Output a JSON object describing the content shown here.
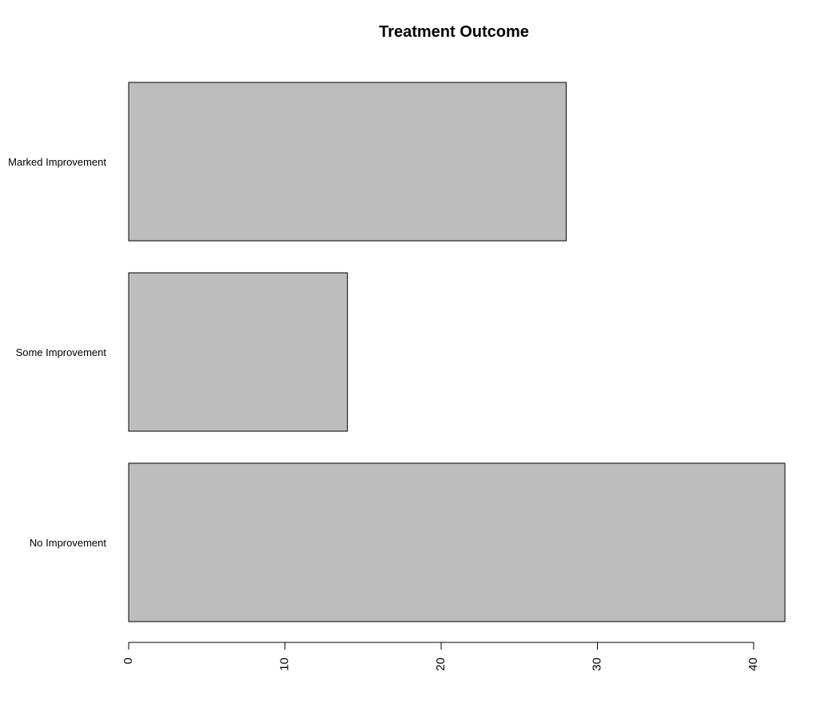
{
  "chart_data": {
    "type": "bar",
    "orientation": "horizontal",
    "title": "Treatment Outcome",
    "xlabel": "",
    "ylabel": "",
    "categories": [
      "No Improvement",
      "Some Improvement",
      "Marked Improvement"
    ],
    "values": [
      42,
      14,
      28
    ],
    "xlim": [
      0,
      42
    ],
    "ticks": [
      "0",
      "10",
      "20",
      "30",
      "40"
    ],
    "bar_color": "#bebebe",
    "grid": false,
    "legend": "none"
  }
}
